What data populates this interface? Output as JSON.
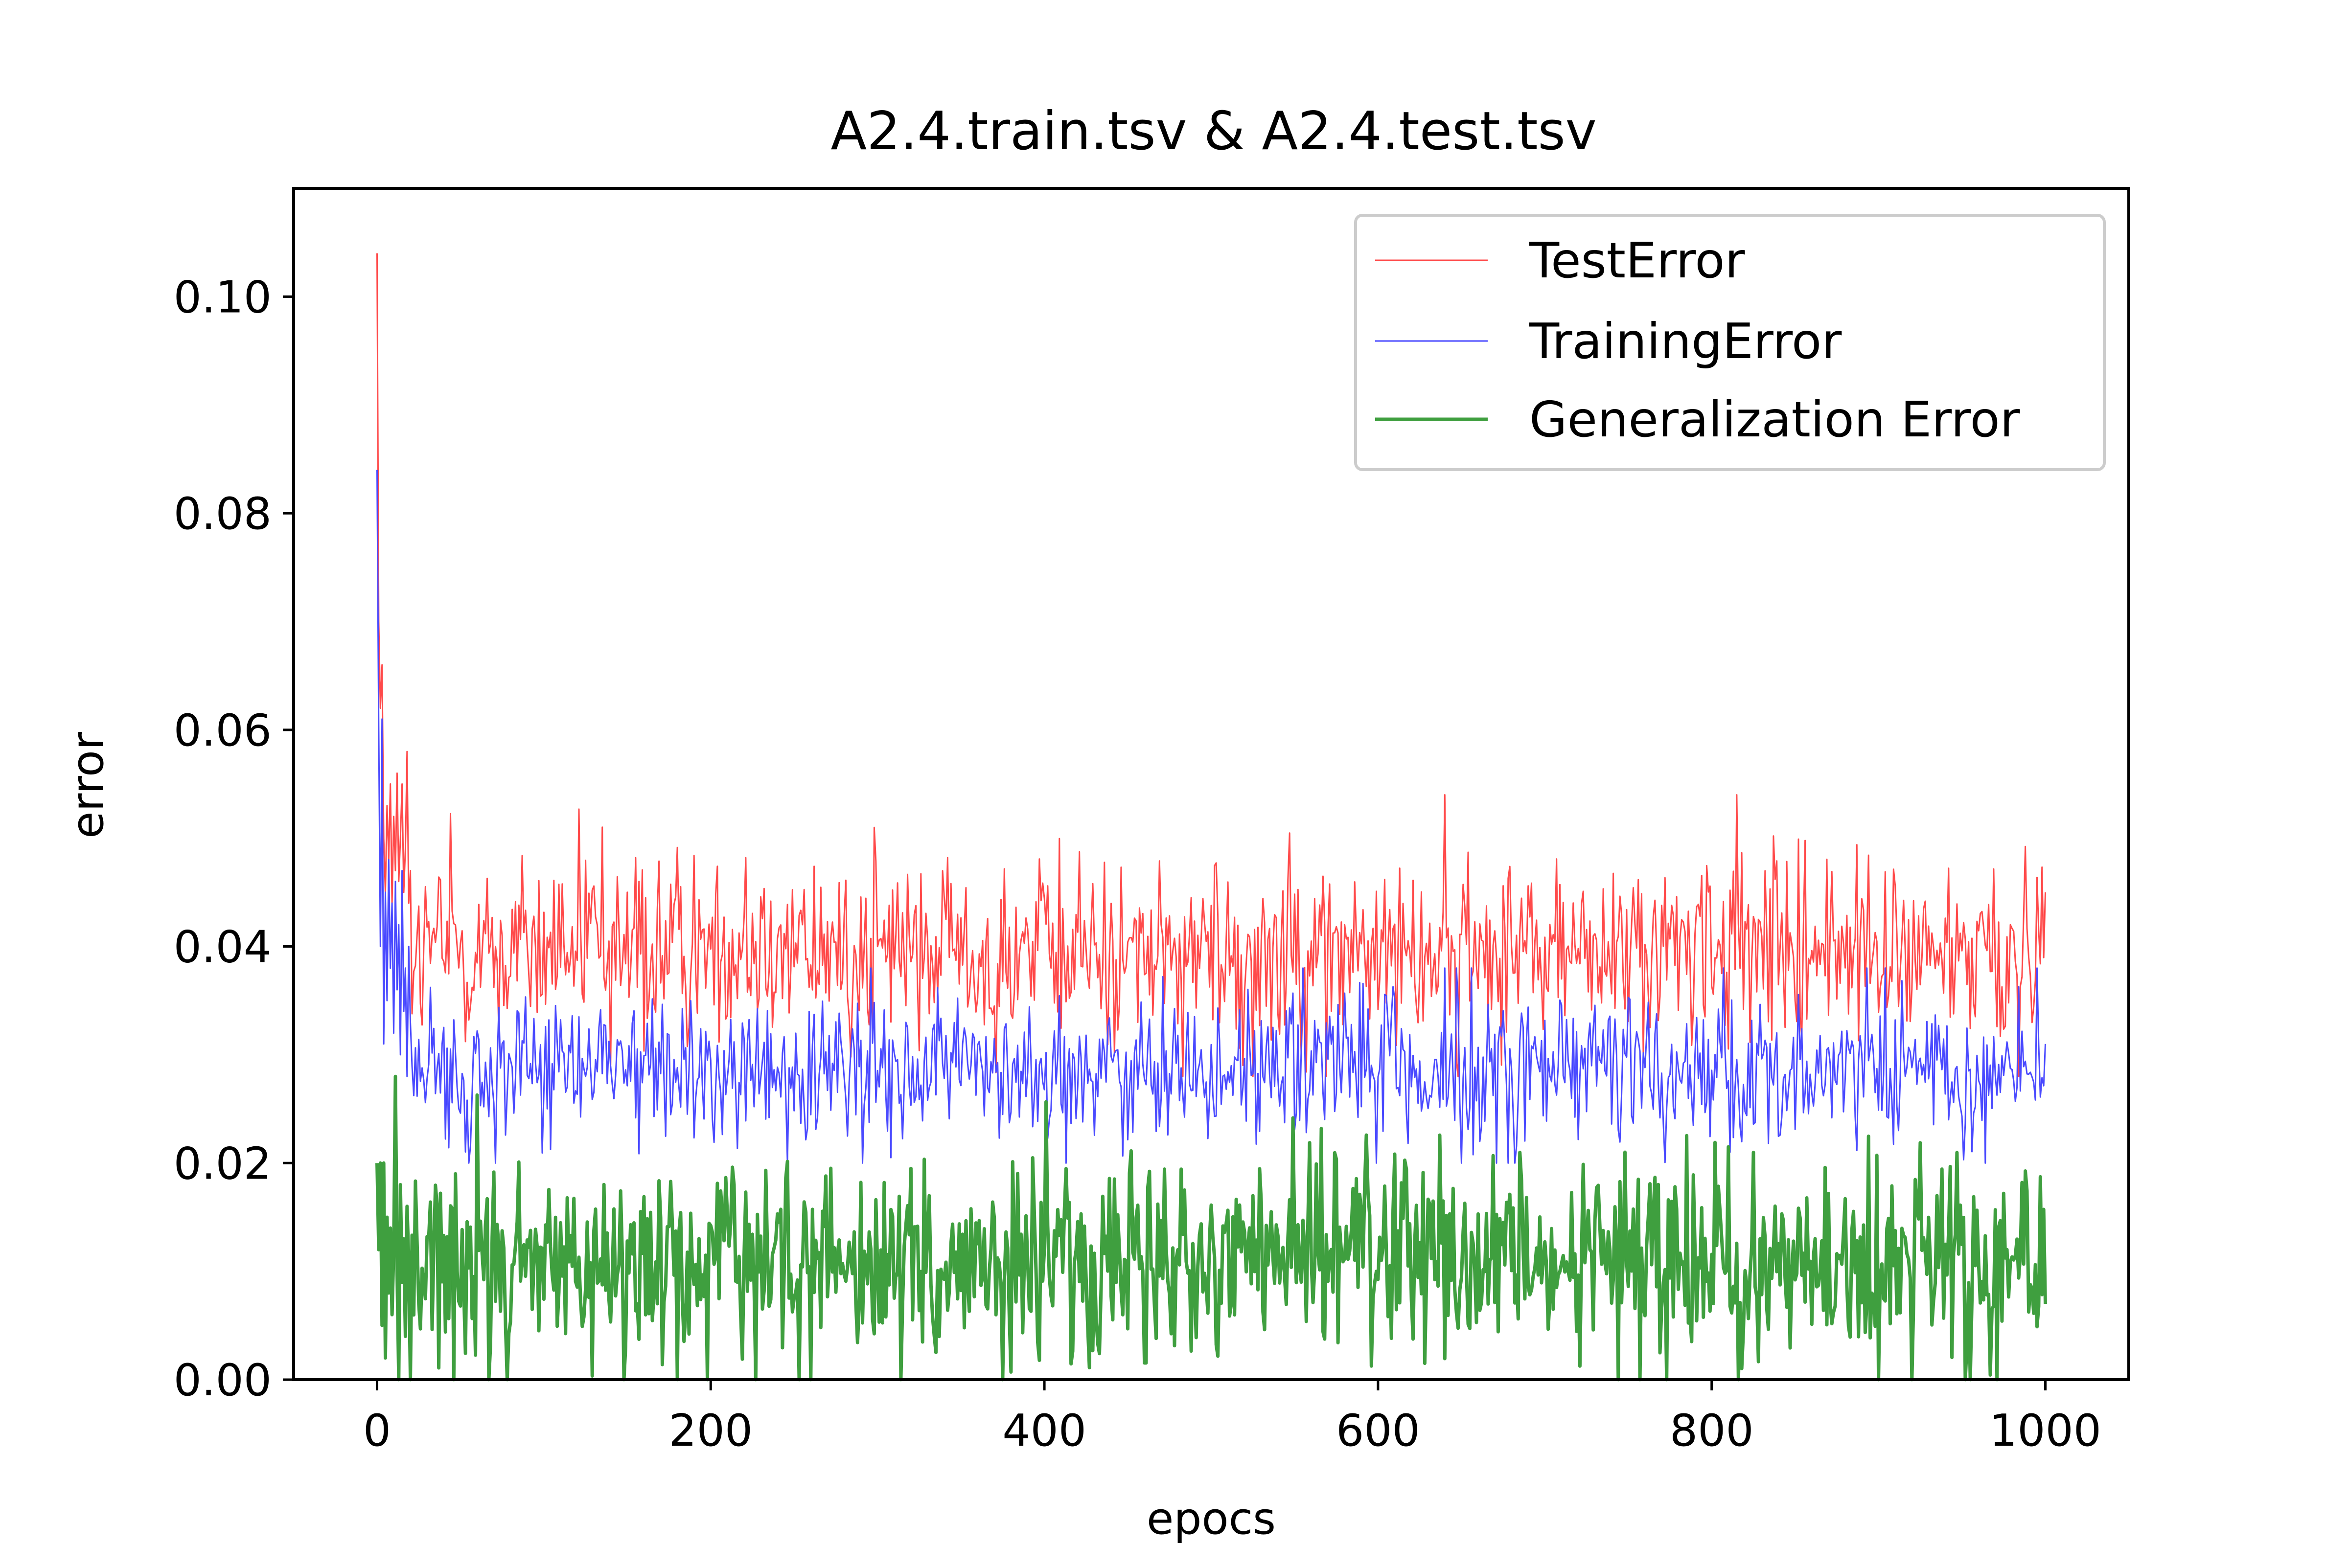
{
  "colors": {
    "test": "#ff4a4a",
    "train": "#4a4aff",
    "generalization": "#3f9f3f"
  },
  "chart_data": {
    "type": "line",
    "title": "A2.4.train.tsv & A2.4.test.tsv",
    "xlabel": "epocs",
    "ylabel": "error",
    "xlim": [
      -50,
      1050
    ],
    "ylim": [
      0.0,
      0.11
    ],
    "xticks": [
      0,
      200,
      400,
      600,
      800,
      1000
    ],
    "yticks": [
      0.0,
      0.02,
      0.04,
      0.06,
      0.08,
      0.1
    ],
    "xtick_labels": [
      "0",
      "200",
      "400",
      "600",
      "800",
      "1000"
    ],
    "ytick_labels": [
      "0.00",
      "0.02",
      "0.04",
      "0.06",
      "0.08",
      "0.10"
    ],
    "grid": false,
    "legend_position": "top-right",
    "n_epochs": 1001,
    "series": [
      {
        "name": "TestError",
        "color": "#ff4a4a",
        "start_values": [
          0.104,
          0.07,
          0.062,
          0.066,
          0.05,
          0.045,
          0.053,
          0.048,
          0.055,
          0.044,
          0.052,
          0.047,
          0.056,
          0.046,
          0.05,
          0.055,
          0.045,
          0.049,
          0.058,
          0.044,
          0.047
        ],
        "mean": 0.0395,
        "spread": 0.0042,
        "min": 0.028,
        "max": 0.054,
        "peaks": [
          [
            640,
            0.054
          ],
          [
            1000,
            0.045
          ]
        ]
      },
      {
        "name": "TrainingError",
        "color": "#4a4aff",
        "start_values": [
          0.084,
          0.06,
          0.04,
          0.061,
          0.031,
          0.045,
          0.035,
          0.048,
          0.038,
          0.044,
          0.032,
          0.046,
          0.036,
          0.042,
          0.03,
          0.047,
          0.034,
          0.038,
          0.028,
          0.04,
          0.033
        ],
        "mean": 0.0285,
        "spread": 0.0033,
        "min": 0.02,
        "max": 0.038,
        "peaks": [
          [
            1000,
            0.031
          ]
        ]
      },
      {
        "name": "Generalization Error",
        "color": "#3f9f3f",
        "start_values": [
          0.02,
          0.012,
          0.02,
          0.005,
          0.02,
          0.002,
          0.015,
          0.008,
          0.014,
          0.006,
          0.012,
          0.028,
          0.01,
          0.0,
          0.018,
          0.009,
          0.013,
          0.004,
          0.016,
          0.011,
          0.0
        ],
        "mean": 0.011,
        "spread": 0.0045,
        "min": 0.0,
        "max": 0.028,
        "peaks": [
          [
            1000,
            0.007
          ]
        ]
      }
    ]
  }
}
